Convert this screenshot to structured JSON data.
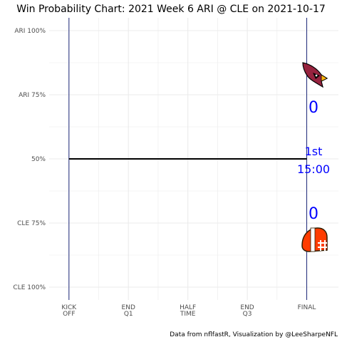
{
  "chart_data": {
    "type": "line",
    "title": "Win Probability Chart: 2021 Week 6 ARI @ CLE on 2021-10-17",
    "caption": "Data from nflfastR, Visualization by @LeeSharpeNFL",
    "y_ticks": [
      {
        "value": 100,
        "label": "ARI 100%"
      },
      {
        "value": 75,
        "label": "ARI 75%"
      },
      {
        "value": 50,
        "label": "50%"
      },
      {
        "value": 25,
        "label": "CLE 75%"
      },
      {
        "value": 0,
        "label": "CLE 100%"
      }
    ],
    "x_ticks": [
      {
        "value": 0,
        "label": [
          "KICK",
          "OFF"
        ]
      },
      {
        "value": 15,
        "label": [
          "END",
          "Q1"
        ]
      },
      {
        "value": 30,
        "label": [
          "HALF",
          "TIME"
        ]
      },
      {
        "value": 45,
        "label": [
          "END",
          "Q3"
        ]
      },
      {
        "value": 60,
        "label": [
          "FINAL"
        ]
      }
    ],
    "xlim": [
      -5,
      68
    ],
    "ylim": [
      -5,
      105
    ],
    "grid": true,
    "reference_lines": [
      {
        "x": 0,
        "color": "#1f2a7a"
      },
      {
        "x": 60,
        "color": "#1f2a7a"
      }
    ],
    "series": [
      {
        "points": [
          {
            "x": 0,
            "y": 50
          },
          {
            "x": 60,
            "y": 50
          }
        ],
        "color": "#000000"
      }
    ],
    "annotations": {
      "away_team": {
        "team": "ARI",
        "score": "0",
        "logo": "cardinals-logo",
        "color": "#97233f"
      },
      "home_team": {
        "team": "CLE",
        "score": "0",
        "logo": "browns-logo",
        "color": "#ff3c00"
      },
      "game_clock": {
        "quarter": "1st",
        "time": "15:00"
      },
      "text_color": "#0000ff"
    }
  }
}
